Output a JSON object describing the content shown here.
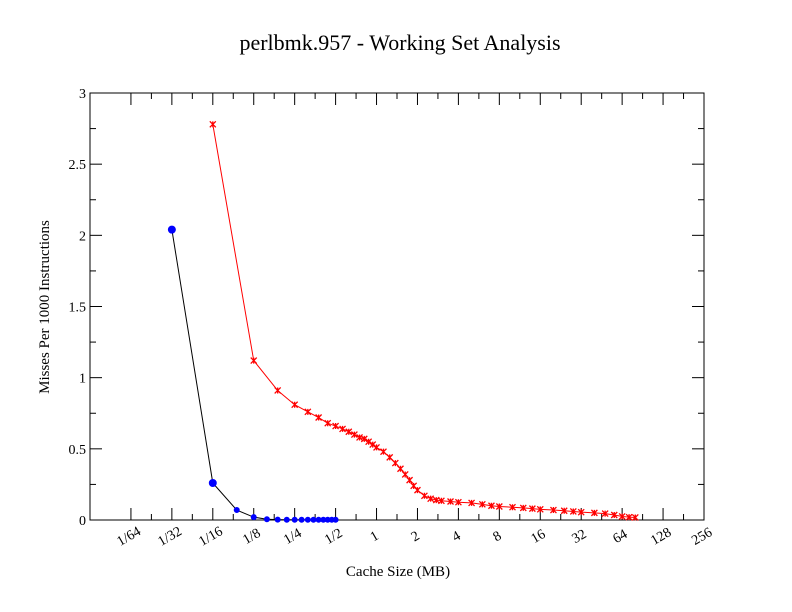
{
  "chart_data": {
    "type": "line",
    "title": "perlbmk.957 - Working Set Analysis",
    "xlabel": "Cache Size (MB)",
    "ylabel": "Misses Per 1000 Instructions",
    "x_scale": "log2",
    "xlim": [
      0.0078125,
      256
    ],
    "ylim": [
      0,
      3
    ],
    "x_tick_values": [
      0.015625,
      0.03125,
      0.0625,
      0.125,
      0.25,
      0.5,
      1,
      2,
      4,
      8,
      16,
      32,
      64,
      128,
      256
    ],
    "x_tick_labels": [
      "1/64",
      "1/32",
      "1/16",
      "1/8",
      "1/4",
      "1/2",
      "1",
      "2",
      "4",
      "8",
      "16",
      "32",
      "64",
      "128",
      "256"
    ],
    "y_tick_values": [
      0,
      0.5,
      1,
      1.5,
      2,
      2.5,
      3
    ],
    "y_tick_labels": [
      "0",
      "0.5",
      "1",
      "1.5",
      "2",
      "2.5",
      "3"
    ],
    "grid": false,
    "legend": "none",
    "series": [
      {
        "color": "#000000",
        "marker_color": "#0000ff",
        "marker": "circle",
        "x": [
          0.03125,
          0.0625,
          0.09375,
          0.125,
          0.15625,
          0.1875,
          0.21875,
          0.25,
          0.28125,
          0.3125,
          0.34375,
          0.375,
          0.40625,
          0.4375,
          0.46875,
          0.5
        ],
        "y": [
          2.04,
          0.26,
          0.07,
          0.02,
          0.005,
          0.003,
          0.002,
          0.002,
          0.002,
          0.002,
          0.002,
          0.002,
          0.002,
          0.002,
          0.002,
          0.002
        ]
      },
      {
        "color": "#ff0000",
        "marker_color": "#ff0000",
        "marker": "cross",
        "x": [
          0.0625,
          0.125,
          0.1875,
          0.25,
          0.3125,
          0.375,
          0.4375,
          0.5,
          0.5625,
          0.625,
          0.6875,
          0.75,
          0.8125,
          0.875,
          0.9375,
          1,
          1.125,
          1.25,
          1.375,
          1.5,
          1.625,
          1.75,
          1.875,
          2,
          2.25,
          2.5,
          2.75,
          3,
          3.5,
          4,
          5,
          6,
          7,
          8,
          10,
          12,
          14,
          16,
          20,
          24,
          28,
          32,
          40,
          48,
          56,
          64,
          72,
          80
        ],
        "y": [
          2.78,
          1.12,
          0.91,
          0.81,
          0.76,
          0.72,
          0.68,
          0.66,
          0.64,
          0.62,
          0.6,
          0.58,
          0.57,
          0.55,
          0.53,
          0.51,
          0.48,
          0.44,
          0.4,
          0.36,
          0.32,
          0.28,
          0.24,
          0.21,
          0.17,
          0.15,
          0.14,
          0.135,
          0.13,
          0.125,
          0.12,
          0.11,
          0.1,
          0.095,
          0.09,
          0.085,
          0.08,
          0.075,
          0.07,
          0.065,
          0.06,
          0.055,
          0.05,
          0.045,
          0.035,
          0.025,
          0.02,
          0.018
        ]
      }
    ]
  }
}
